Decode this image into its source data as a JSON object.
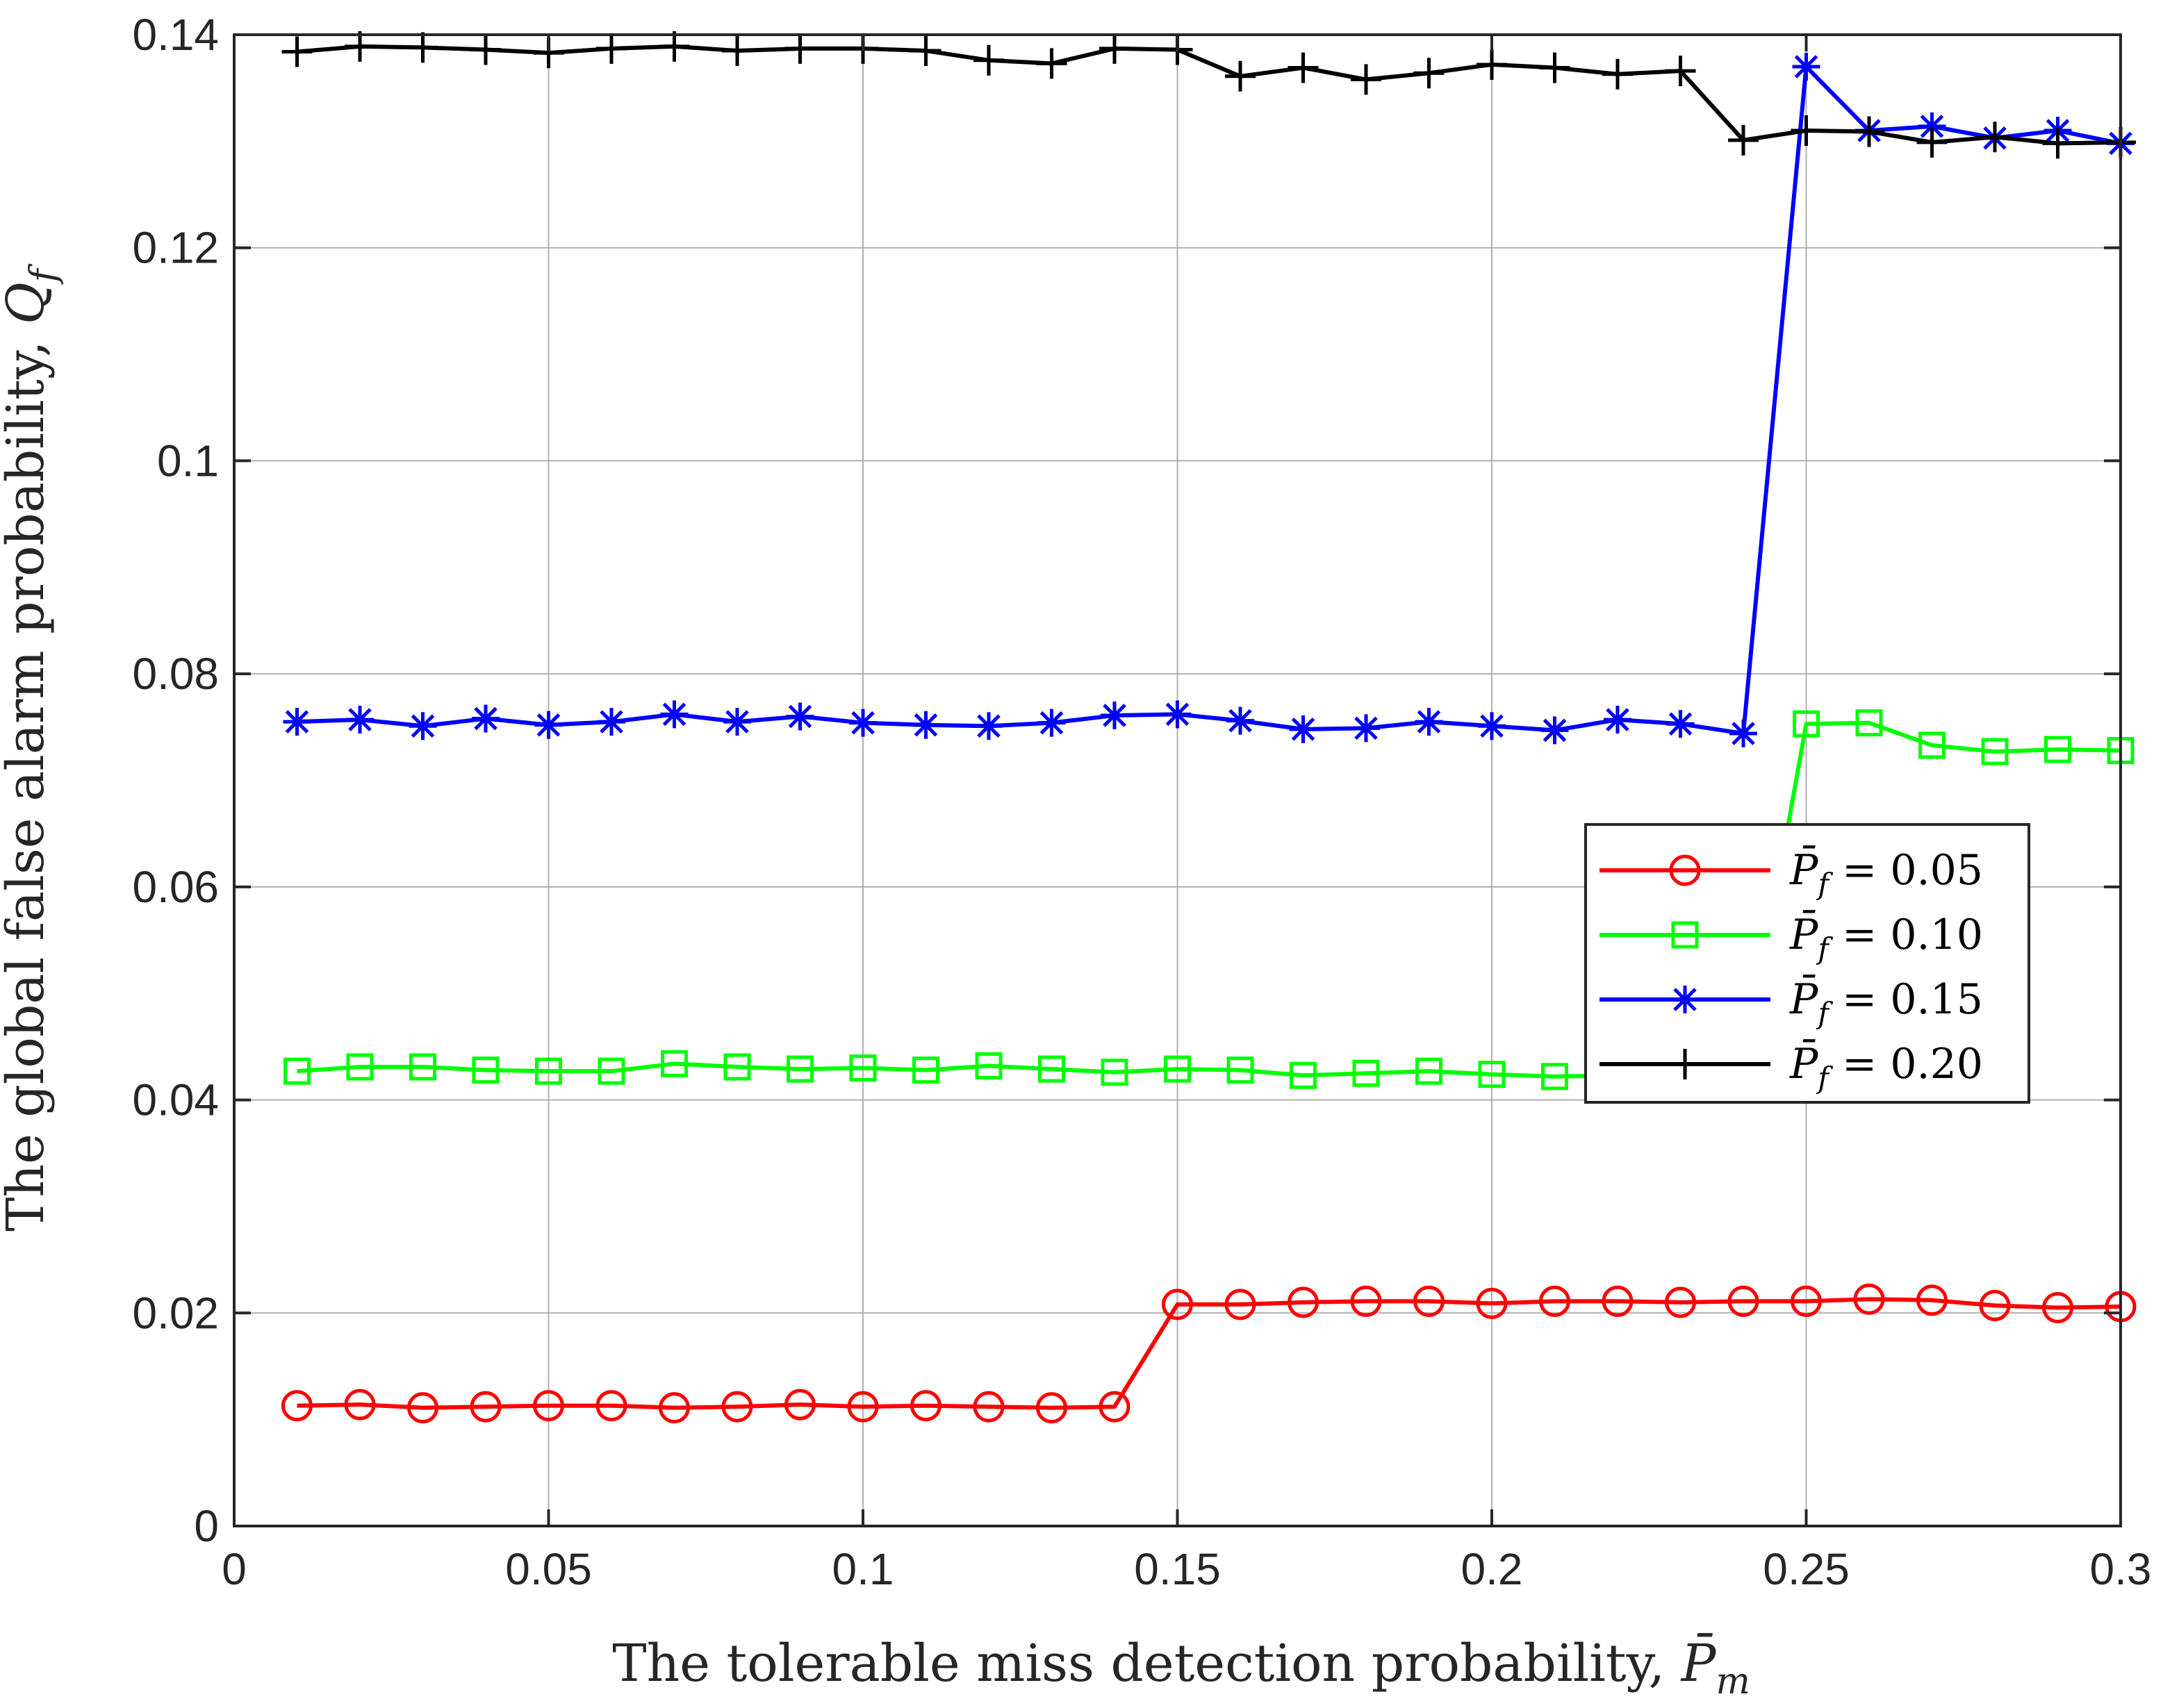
{
  "chart_data": {
    "type": "line",
    "xlabel": "The tolerable miss detection probability, ",
    "xlabel_symbol": "P̄",
    "xlabel_subscript": "m",
    "ylabel": "The global false alarm probability, ",
    "ylabel_symbol": "Q",
    "ylabel_subscript": "f",
    "xlim": [
      0,
      0.3
    ],
    "ylim": [
      0,
      0.14
    ],
    "xticks": [
      0,
      0.05,
      0.1,
      0.15,
      0.2,
      0.25,
      0.3
    ],
    "xtick_labels": [
      "0",
      "0.05",
      "0.1",
      "0.15",
      "0.2",
      "0.25",
      "0.3"
    ],
    "yticks": [
      0,
      0.02,
      0.04,
      0.06,
      0.08,
      0.1,
      0.12,
      0.14
    ],
    "ytick_labels": [
      "0",
      "0.02",
      "0.04",
      "0.06",
      "0.08",
      "0.1",
      "0.12",
      "0.14"
    ],
    "legend_position": "right-middle",
    "x": [
      0.01,
      0.02,
      0.03,
      0.04,
      0.05,
      0.06,
      0.07,
      0.08,
      0.09,
      0.1,
      0.11,
      0.12,
      0.13,
      0.14,
      0.15,
      0.16,
      0.17,
      0.18,
      0.19,
      0.2,
      0.21,
      0.22,
      0.23,
      0.24,
      0.25,
      0.26,
      0.27,
      0.28,
      0.29,
      0.3
    ],
    "series": [
      {
        "name": "P̄f = 0.05",
        "legend_lhs": "P̄",
        "legend_sub": "f",
        "legend_rhs": " = 0.05",
        "color": "#ff0000",
        "marker": "circle",
        "values": [
          0.0113,
          0.0114,
          0.0111,
          0.0112,
          0.0113,
          0.0113,
          0.0111,
          0.0112,
          0.0114,
          0.0112,
          0.0113,
          0.0112,
          0.0111,
          0.0112,
          0.0208,
          0.0208,
          0.021,
          0.0211,
          0.0211,
          0.0209,
          0.0211,
          0.0211,
          0.021,
          0.0211,
          0.0211,
          0.0213,
          0.0212,
          0.0207,
          0.0205,
          0.0206
        ]
      },
      {
        "name": "P̄f = 0.10",
        "legend_lhs": "P̄",
        "legend_sub": "f",
        "legend_rhs": " = 0.10",
        "color": "#00ff00",
        "marker": "square",
        "values": [
          0.0427,
          0.0431,
          0.0431,
          0.0428,
          0.0427,
          0.0427,
          0.0434,
          0.0431,
          0.0429,
          0.043,
          0.0428,
          0.0432,
          0.0429,
          0.0426,
          0.0429,
          0.0428,
          0.0423,
          0.0425,
          0.0427,
          0.0424,
          0.0422,
          0.0423,
          0.0424,
          0.0423,
          0.0753,
          0.0754,
          0.0733,
          0.0727,
          0.0729,
          0.0728
        ]
      },
      {
        "name": "P̄f = 0.15",
        "legend_lhs": "P̄",
        "legend_sub": "f",
        "legend_rhs": " = 0.15",
        "color": "#0000ff",
        "marker": "asterisk",
        "values": [
          0.0755,
          0.0757,
          0.0751,
          0.0758,
          0.0752,
          0.0755,
          0.0762,
          0.0755,
          0.076,
          0.0754,
          0.0752,
          0.0751,
          0.0754,
          0.0761,
          0.0762,
          0.0756,
          0.0748,
          0.0749,
          0.0755,
          0.0751,
          0.0747,
          0.0757,
          0.0753,
          0.0744,
          0.137,
          0.131,
          0.1314,
          0.1303,
          0.131,
          0.1298
        ]
      },
      {
        "name": "P̄f = 0.20",
        "legend_lhs": "P̄",
        "legend_sub": "f",
        "legend_rhs": " = 0.20",
        "color": "#000000",
        "marker": "plus",
        "values": [
          0.1384,
          0.1389,
          0.1388,
          0.1386,
          0.1383,
          0.1387,
          0.1389,
          0.1385,
          0.1387,
          0.1387,
          0.1385,
          0.1376,
          0.1373,
          0.1387,
          0.1386,
          0.1361,
          0.1369,
          0.1358,
          0.1364,
          0.1372,
          0.1369,
          0.1363,
          0.1366,
          0.1301,
          0.131,
          0.1309,
          0.1299,
          0.1304,
          0.1298,
          0.1299
        ]
      }
    ]
  }
}
